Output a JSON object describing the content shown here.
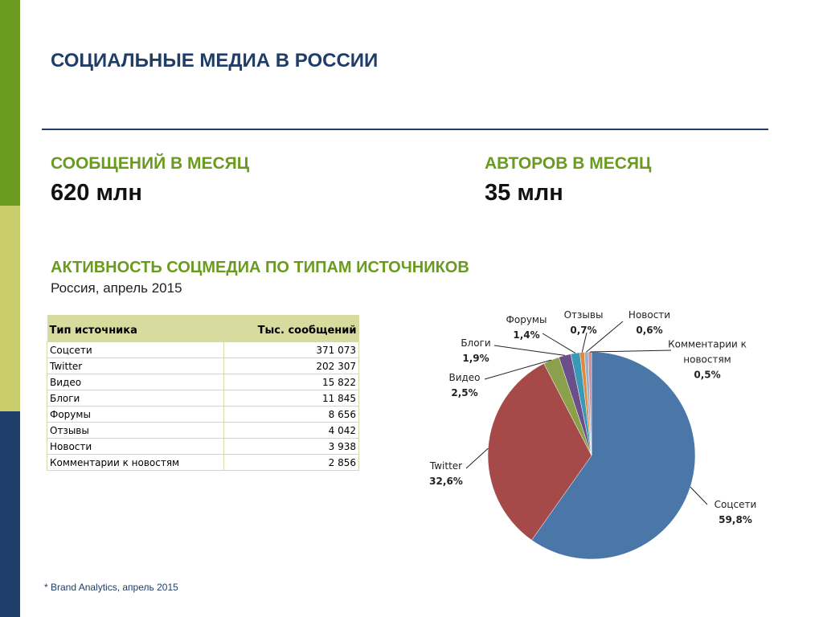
{
  "header": {
    "title": "СОЦИАЛЬНЫЕ МЕДИА В РОССИИ"
  },
  "stats": [
    {
      "label": "СООБЩЕНИЙ В МЕСЯЦ",
      "value": "620 млн"
    },
    {
      "label": "АВТОРОВ В МЕСЯЦ",
      "value": "35 млн"
    }
  ],
  "section": {
    "title": "АКТИВНОСТЬ СОЦМЕДИА ПО ТИПАМ ИСТОЧНИКОВ",
    "subtitle": "Россия, апрель 2015"
  },
  "table": {
    "header": [
      "Тип источника",
      "Тыс. сообщений"
    ],
    "rows": [
      [
        "Соцсети",
        "371 073"
      ],
      [
        "Twitter",
        "202 307"
      ],
      [
        "Видео",
        "15 822"
      ],
      [
        "Блоги",
        "11 845"
      ],
      [
        "Форумы",
        "8 656"
      ],
      [
        "Отзывы",
        "4 042"
      ],
      [
        "Новости",
        "3 938"
      ],
      [
        "Комментарии к новостям",
        "2 856"
      ]
    ]
  },
  "chart_data": {
    "type": "pie",
    "categories": [
      "Соцсети",
      "Twitter",
      "Видео",
      "Блоги",
      "Форумы",
      "Отзывы",
      "Новости",
      "Комментарии к новостям"
    ],
    "values": [
      59.8,
      32.6,
      2.5,
      1.9,
      1.4,
      0.7,
      0.6,
      0.5
    ],
    "value_labels": [
      "59,8%",
      "32,6%",
      "2,5%",
      "1,9%",
      "1,4%",
      "0,7%",
      "0,6%",
      "0,5%"
    ],
    "colors": [
      "#4a76a8",
      "#a54a48",
      "#8aa04a",
      "#6a4f8a",
      "#3a9ab5",
      "#e08a3a",
      "#9ab0d0",
      "#d08a8a"
    ]
  },
  "footnote": "* Brand Analytics, апрель 2015"
}
